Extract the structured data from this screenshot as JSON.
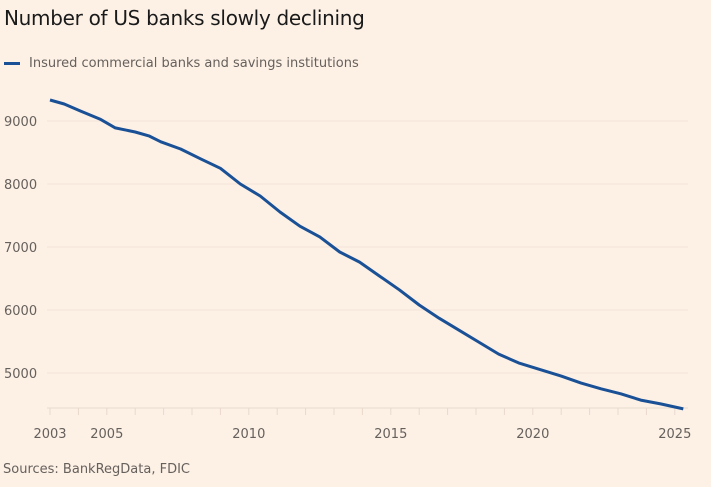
{
  "chart_data": {
    "type": "line",
    "title": "Number of US banks slowly declining",
    "xlabel": "",
    "ylabel": "",
    "xlim": [
      2003,
      2025.5
    ],
    "ylim": [
      4400,
      9400
    ],
    "grid": true,
    "legend_position": "top-left",
    "y_ticks": [
      9000,
      8000,
      7000,
      6000,
      5000
    ],
    "y_tick_labels": [
      "9000",
      "8000",
      "7000",
      "6000",
      "5000"
    ],
    "x_ticks": [
      2003,
      2005,
      2010,
      2015,
      2020,
      2025
    ],
    "x_tick_labels": [
      "2003",
      "2005",
      "2010",
      "2015",
      "2020",
      "2025"
    ],
    "x_minor_ticks": [
      2004,
      2006,
      2007,
      2008,
      2009,
      2011,
      2012,
      2013,
      2014,
      2016,
      2017,
      2018,
      2019,
      2021,
      2022,
      2023,
      2024
    ],
    "series": [
      {
        "name": "Insured commercial banks and savings institutions",
        "color": "#1a5196",
        "x": [
          2003.0,
          2003.5,
          2004.06,
          2004.76,
          2005.3,
          2006.0,
          2006.5,
          2006.9,
          2007.6,
          2008.3,
          2009.0,
          2009.7,
          2010.4,
          2011.1,
          2011.8,
          2012.5,
          2013.2,
          2013.9,
          2014.6,
          2015.3,
          2016.0,
          2016.7,
          2017.4,
          2018.1,
          2018.8,
          2019.5,
          2020.3,
          2021.0,
          2021.7,
          2022.4,
          2023.1,
          2023.8,
          2024.5,
          2025.3
        ],
        "values": [
          9333,
          9270,
          9160,
          9030,
          8890,
          8825,
          8760,
          8670,
          8555,
          8400,
          8250,
          8000,
          7810,
          7555,
          7330,
          7160,
          6920,
          6760,
          6540,
          6320,
          6080,
          5870,
          5680,
          5490,
          5300,
          5160,
          5050,
          4950,
          4840,
          4750,
          4670,
          4570,
          4510,
          4430
        ]
      }
    ],
    "source": "Sources: BankRegData, FDIC"
  }
}
